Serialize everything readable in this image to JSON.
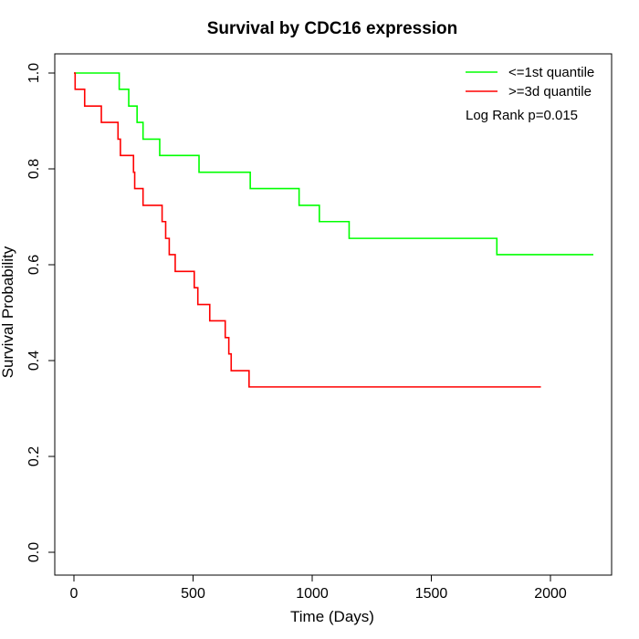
{
  "chart_data": {
    "type": "line",
    "title": "Survival by CDC16 expression",
    "xlabel": "Time (Days)",
    "ylabel": "Survival Probability",
    "xlim": [
      0,
      2200
    ],
    "ylim": [
      0,
      1
    ],
    "xticks": [
      0,
      500,
      1000,
      1500,
      2000
    ],
    "yticks": [
      0.0,
      0.2,
      0.4,
      0.6,
      0.8,
      1.0
    ],
    "xtick_labels": [
      "0",
      "500",
      "1000",
      "1500",
      "2000"
    ],
    "ytick_labels": [
      "0.0",
      "0.2",
      "0.4",
      "0.6",
      "0.8",
      "1.0"
    ],
    "grid": false,
    "legend_position": "top-right",
    "annotation": "Log Rank p=0.015",
    "series": [
      {
        "name": "<=1st quantile",
        "color": "#00ff00",
        "step": true,
        "x": [
          0,
          190,
          230,
          265,
          290,
          360,
          525,
          740,
          945,
          1030,
          1155,
          1775,
          2180
        ],
        "y": [
          1.0,
          0.966,
          0.931,
          0.897,
          0.862,
          0.828,
          0.793,
          0.759,
          0.724,
          0.69,
          0.655,
          0.621,
          0.621
        ]
      },
      {
        "name": ">=3d quantile",
        "color": "#ff0000",
        "step": true,
        "x": [
          0,
          5,
          45,
          115,
          185,
          195,
          250,
          255,
          290,
          370,
          385,
          400,
          425,
          505,
          520,
          570,
          635,
          650,
          660,
          735,
          1960
        ],
        "y": [
          1.0,
          0.966,
          0.931,
          0.897,
          0.862,
          0.828,
          0.793,
          0.759,
          0.724,
          0.69,
          0.655,
          0.621,
          0.586,
          0.552,
          0.517,
          0.483,
          0.448,
          0.414,
          0.379,
          0.345,
          0.345
        ]
      }
    ]
  }
}
